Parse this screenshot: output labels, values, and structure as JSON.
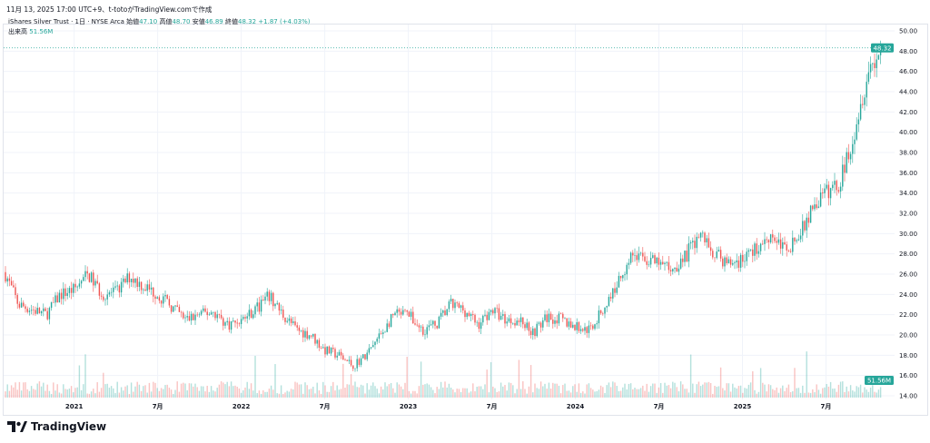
{
  "caption": "11月 13, 2025 17:00 UTC+9、t-totoがTradingView.comで作成",
  "legend": {
    "symbol": "iShares Silver Trust · 1日 · NYSE Arca",
    "open_label": "始値",
    "open": "47.10",
    "high_label": "高値",
    "high": "48.70",
    "low_label": "安値",
    "low": "46.89",
    "close_label": "終値",
    "close": "48.32",
    "change": "+1.87 (+4.03%)",
    "volume_label": "出来高",
    "volume": "51.56M"
  },
  "logo": "TradingView",
  "colors": {
    "up": "#26a69a",
    "down": "#ef5350",
    "grid": "#f0f3fa",
    "axis_text": "#131722"
  },
  "chart_data": {
    "type": "candlestick",
    "title": "",
    "interval": "1日",
    "ylim": [
      14,
      50
    ],
    "y_ticks": [
      "14.00",
      "16.00",
      "18.00",
      "20.00",
      "22.00",
      "24.00",
      "26.00",
      "28.00",
      "30.00",
      "32.00",
      "34.00",
      "36.00",
      "38.00",
      "40.00",
      "42.00",
      "44.00",
      "46.00",
      "48.00",
      "50.00"
    ],
    "x_ticks": [
      "2021",
      "7月",
      "2022",
      "7月",
      "2023",
      "7月",
      "2024",
      "7月",
      "2025",
      "7月"
    ],
    "last_price_label": "48.32",
    "volume_label": "51.56M",
    "grid": true,
    "approx_monthly_close": {
      "months": [
        "2020-08",
        "2020-09",
        "2020-10",
        "2020-11",
        "2020-12",
        "2021-01",
        "2021-02",
        "2021-03",
        "2021-04",
        "2021-05",
        "2021-06",
        "2021-07",
        "2021-08",
        "2021-09",
        "2021-10",
        "2021-11",
        "2021-12",
        "2022-01",
        "2022-02",
        "2022-03",
        "2022-04",
        "2022-05",
        "2022-06",
        "2022-07",
        "2022-08",
        "2022-09",
        "2022-10",
        "2022-11",
        "2022-12",
        "2023-01",
        "2023-02",
        "2023-03",
        "2023-04",
        "2023-05",
        "2023-06",
        "2023-07",
        "2023-08",
        "2023-09",
        "2023-10",
        "2023-11",
        "2023-12",
        "2024-01",
        "2024-02",
        "2024-03",
        "2024-04",
        "2024-05",
        "2024-06",
        "2024-07",
        "2024-08",
        "2024-09",
        "2024-10",
        "2024-11",
        "2024-12",
        "2025-01",
        "2025-02",
        "2025-03",
        "2025-04",
        "2025-05",
        "2025-06",
        "2025-07",
        "2025-08",
        "2025-09",
        "2025-10",
        "2025-11"
      ],
      "values": [
        26.2,
        23.0,
        22.5,
        22.0,
        24.0,
        24.5,
        26.0,
        24.0,
        24.2,
        25.8,
        24.8,
        24.0,
        22.8,
        21.5,
        22.0,
        22.3,
        21.0,
        21.5,
        22.5,
        23.8,
        22.0,
        20.5,
        20.0,
        18.5,
        18.0,
        17.0,
        18.0,
        20.0,
        22.0,
        22.0,
        20.5,
        21.0,
        23.0,
        22.5,
        21.0,
        22.5,
        21.5,
        21.5,
        20.3,
        21.8,
        21.5,
        20.8,
        20.5,
        22.5,
        25.0,
        28.0,
        27.5,
        27.0,
        26.5,
        28.0,
        30.0,
        28.0,
        27.0,
        27.5,
        28.5,
        30.0,
        28.5,
        29.5,
        32.5,
        34.0,
        35.0,
        40.0,
        46.0,
        48.32
      ]
    }
  }
}
